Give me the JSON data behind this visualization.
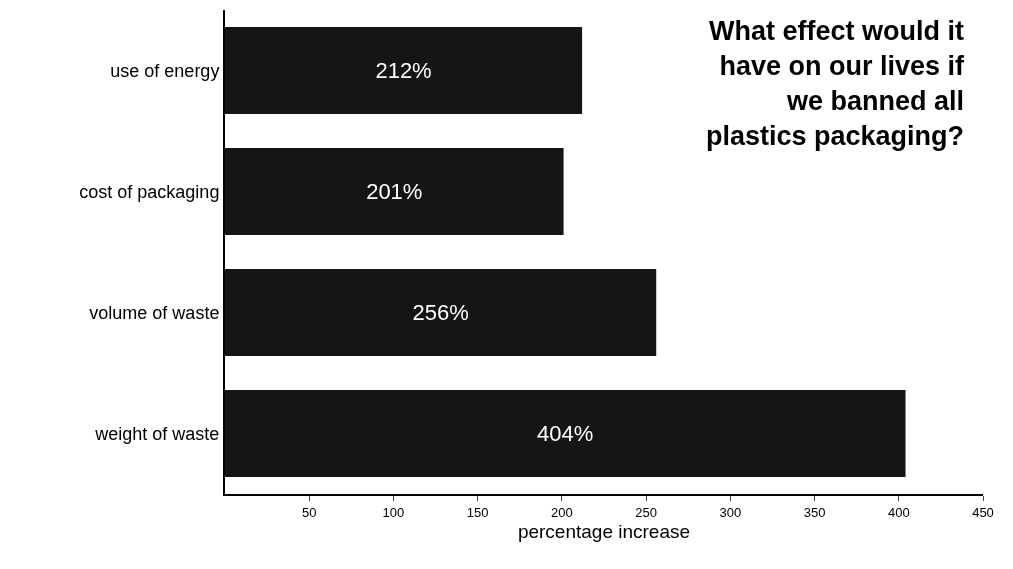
{
  "chart_data": {
    "type": "bar",
    "orientation": "horizontal",
    "title": "What effect would it have on our lives if we banned all plastics packaging?",
    "categories": [
      "use of energy",
      "cost of packaging",
      "volume of waste",
      "weight of waste"
    ],
    "values": [
      212,
      201,
      256,
      404
    ],
    "value_labels": [
      "212%",
      "201%",
      "256%",
      "404%"
    ],
    "color": "#151515",
    "xlabel": "percentage increase",
    "xlim": [
      0,
      450
    ],
    "xticks": [
      50,
      100,
      150,
      200,
      250,
      300,
      350,
      400,
      450
    ],
    "grid": false
  }
}
